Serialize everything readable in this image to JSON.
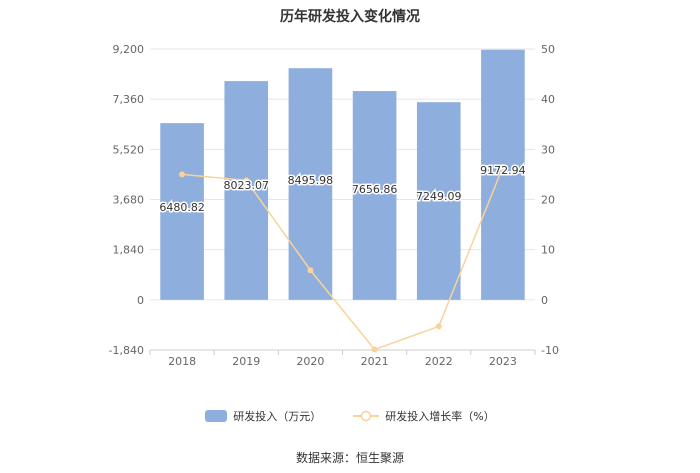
{
  "chart_data": {
    "type": "bar",
    "title": "历年研发投入变化情况",
    "categories": [
      "2018",
      "2019",
      "2020",
      "2021",
      "2022",
      "2023"
    ],
    "series": [
      {
        "name": "研发投入（万元）",
        "type": "bar",
        "axis": "left",
        "values": [
          6480.82,
          8023.07,
          8495.98,
          7656.86,
          7249.09,
          9172.94
        ],
        "labels": [
          "6480.82",
          "8023.07",
          "8495.98",
          "7656.86",
          "7249.09",
          "9172.94"
        ],
        "color": "#8eaedd"
      },
      {
        "name": "研发投入增长率（%）",
        "type": "line",
        "axis": "right",
        "values": [
          25.0,
          23.8,
          5.9,
          -9.9,
          -5.3,
          26.5
        ],
        "color": "#f8d39a"
      }
    ],
    "y_left": {
      "min": -1840,
      "max": 9200,
      "ticks": [
        "-1,840",
        "0",
        "1,840",
        "3,680",
        "5,520",
        "7,360",
        "9,200"
      ]
    },
    "y_right": {
      "min": -10,
      "max": 50,
      "ticks": [
        "-10",
        "0",
        "10",
        "20",
        "30",
        "40",
        "50"
      ]
    },
    "grid": true,
    "legend_position": "bottom"
  },
  "legend": {
    "bar_label": "研发投入（万元）",
    "line_label": "研发投入增长率（%）"
  },
  "source": "数据来源：恒生聚源"
}
